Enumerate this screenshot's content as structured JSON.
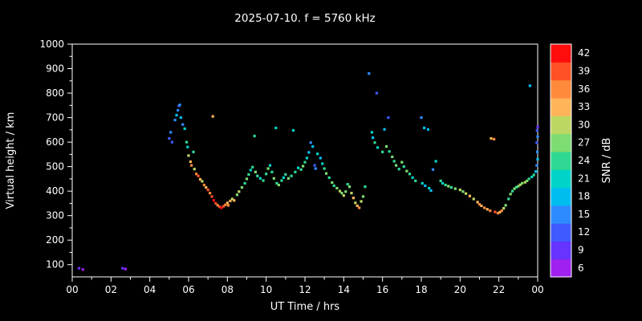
{
  "chart_data": {
    "type": "scatter",
    "title": "2025-07-10. f = 5760 kHz",
    "xlabel": "UT Time / hrs",
    "ylabel": "Virtual height / km",
    "xlim": [
      0,
      24
    ],
    "ylim": [
      50,
      1000
    ],
    "x_tick_values": [
      0,
      2,
      4,
      6,
      8,
      10,
      12,
      14,
      16,
      18,
      20,
      22,
      24
    ],
    "x_tick_labels": [
      "00",
      "02",
      "04",
      "06",
      "08",
      "10",
      "12",
      "14",
      "16",
      "18",
      "20",
      "22",
      "00"
    ],
    "y_tick_values": [
      100,
      200,
      300,
      400,
      500,
      600,
      700,
      800,
      900,
      1000
    ],
    "y_tick_labels": [
      "100",
      "200",
      "300",
      "400",
      "500",
      "600",
      "700",
      "800",
      "900",
      "1000"
    ],
    "background": "#000000",
    "axis_color": "#ffffff",
    "text_color": "#ffffff",
    "grid": false,
    "legend": "colorbar-right",
    "colorbar": {
      "label": "SNR / dB",
      "tick_values": [
        6,
        9,
        12,
        15,
        18,
        21,
        24,
        27,
        30,
        33,
        36,
        39,
        42
      ],
      "colors": [
        "#a020f0",
        "#6633ff",
        "#3e5bff",
        "#2e8bff",
        "#00bdf0",
        "#00d4c8",
        "#2fd993",
        "#7ddc72",
        "#bcd763",
        "#ffb45a",
        "#ff8a3c",
        "#ff5026",
        "#ff0d0d"
      ]
    },
    "points": [
      [
        0.35,
        85,
        9
      ],
      [
        0.55,
        80,
        6
      ],
      [
        2.6,
        85,
        9
      ],
      [
        2.75,
        82,
        6
      ],
      [
        5.0,
        615,
        12
      ],
      [
        5.08,
        640,
        15
      ],
      [
        5.15,
        600,
        12
      ],
      [
        5.3,
        690,
        15
      ],
      [
        5.38,
        710,
        18
      ],
      [
        5.45,
        730,
        15
      ],
      [
        5.5,
        748,
        12
      ],
      [
        5.55,
        752,
        15
      ],
      [
        5.6,
        700,
        18
      ],
      [
        5.7,
        672,
        15
      ],
      [
        5.8,
        655,
        21
      ],
      [
        5.9,
        600,
        24
      ],
      [
        5.95,
        580,
        21
      ],
      [
        6.0,
        545,
        30
      ],
      [
        6.1,
        520,
        33
      ],
      [
        6.15,
        505,
        36
      ],
      [
        6.25,
        560,
        24
      ],
      [
        6.3,
        490,
        30
      ],
      [
        6.4,
        470,
        36
      ],
      [
        6.5,
        462,
        39
      ],
      [
        6.6,
        448,
        33
      ],
      [
        6.7,
        440,
        30
      ],
      [
        6.8,
        425,
        36
      ],
      [
        6.9,
        415,
        33
      ],
      [
        7.0,
        405,
        39
      ],
      [
        7.1,
        392,
        36
      ],
      [
        7.2,
        378,
        39
      ],
      [
        7.25,
        705,
        33
      ],
      [
        7.3,
        362,
        42
      ],
      [
        7.4,
        350,
        39
      ],
      [
        7.5,
        342,
        36
      ],
      [
        7.6,
        336,
        39
      ],
      [
        7.7,
        332,
        42
      ],
      [
        7.8,
        338,
        39
      ],
      [
        7.9,
        344,
        36
      ],
      [
        8.0,
        352,
        33
      ],
      [
        8.05,
        342,
        36
      ],
      [
        8.15,
        360,
        33
      ],
      [
        8.25,
        368,
        30
      ],
      [
        8.35,
        362,
        33
      ],
      [
        8.5,
        385,
        27
      ],
      [
        8.6,
        398,
        30
      ],
      [
        8.75,
        415,
        27
      ],
      [
        8.9,
        432,
        24
      ],
      [
        9.0,
        450,
        27
      ],
      [
        9.1,
        468,
        24
      ],
      [
        9.2,
        486,
        21
      ],
      [
        9.3,
        498,
        24
      ],
      [
        9.4,
        625,
        24
      ],
      [
        9.45,
        478,
        27
      ],
      [
        9.55,
        462,
        24
      ],
      [
        9.7,
        452,
        21
      ],
      [
        9.85,
        443,
        24
      ],
      [
        10.0,
        470,
        24
      ],
      [
        10.1,
        492,
        27
      ],
      [
        10.2,
        505,
        21
      ],
      [
        10.3,
        478,
        24
      ],
      [
        10.4,
        452,
        27
      ],
      [
        10.5,
        658,
        21
      ],
      [
        10.55,
        432,
        24
      ],
      [
        10.65,
        425,
        27
      ],
      [
        10.8,
        443,
        24
      ],
      [
        10.9,
        455,
        21
      ],
      [
        11.0,
        468,
        24
      ],
      [
        11.15,
        452,
        27
      ],
      [
        11.3,
        462,
        24
      ],
      [
        11.4,
        648,
        21
      ],
      [
        11.5,
        478,
        24
      ],
      [
        11.65,
        495,
        21
      ],
      [
        11.8,
        488,
        24
      ],
      [
        11.9,
        502,
        27
      ],
      [
        12.0,
        518,
        24
      ],
      [
        12.1,
        535,
        21
      ],
      [
        12.2,
        558,
        18
      ],
      [
        12.3,
        598,
        15
      ],
      [
        12.4,
        582,
        18
      ],
      [
        12.5,
        505,
        12
      ],
      [
        12.55,
        492,
        15
      ],
      [
        12.65,
        552,
        21
      ],
      [
        12.8,
        535,
        18
      ],
      [
        12.9,
        512,
        21
      ],
      [
        13.0,
        492,
        24
      ],
      [
        13.1,
        472,
        27
      ],
      [
        13.25,
        455,
        24
      ],
      [
        13.4,
        435,
        27
      ],
      [
        13.5,
        422,
        24
      ],
      [
        13.65,
        412,
        27
      ],
      [
        13.8,
        400,
        30
      ],
      [
        13.9,
        392,
        27
      ],
      [
        14.0,
        382,
        30
      ],
      [
        14.1,
        398,
        27
      ],
      [
        14.2,
        428,
        24
      ],
      [
        14.3,
        418,
        27
      ],
      [
        14.4,
        392,
        30
      ],
      [
        14.5,
        372,
        33
      ],
      [
        14.6,
        352,
        30
      ],
      [
        14.7,
        340,
        33
      ],
      [
        14.8,
        332,
        36
      ],
      [
        14.9,
        358,
        30
      ],
      [
        15.0,
        378,
        27
      ],
      [
        15.1,
        418,
        24
      ],
      [
        15.3,
        880,
        15
      ],
      [
        15.45,
        640,
        21
      ],
      [
        15.5,
        618,
        18
      ],
      [
        15.6,
        598,
        24
      ],
      [
        15.7,
        800,
        12
      ],
      [
        15.75,
        578,
        21
      ],
      [
        16.0,
        560,
        24
      ],
      [
        16.1,
        652,
        18
      ],
      [
        16.2,
        582,
        27
      ],
      [
        16.3,
        700,
        12
      ],
      [
        16.35,
        562,
        24
      ],
      [
        16.5,
        540,
        27
      ],
      [
        16.6,
        522,
        24
      ],
      [
        16.7,
        505,
        27
      ],
      [
        16.85,
        490,
        24
      ],
      [
        17.0,
        518,
        27
      ],
      [
        17.1,
        500,
        24
      ],
      [
        17.25,
        482,
        27
      ],
      [
        17.4,
        470,
        24
      ],
      [
        17.55,
        455,
        21
      ],
      [
        17.7,
        442,
        24
      ],
      [
        18.0,
        700,
        15
      ],
      [
        18.05,
        432,
        21
      ],
      [
        18.15,
        658,
        18
      ],
      [
        18.2,
        422,
        18
      ],
      [
        18.35,
        652,
        18
      ],
      [
        18.4,
        412,
        21
      ],
      [
        18.5,
        402,
        18
      ],
      [
        18.6,
        488,
        15
      ],
      [
        18.75,
        522,
        21
      ],
      [
        19.0,
        442,
        24
      ],
      [
        19.1,
        432,
        21
      ],
      [
        19.25,
        425,
        24
      ],
      [
        19.4,
        420,
        27
      ],
      [
        19.55,
        415,
        24
      ],
      [
        19.75,
        410,
        27
      ],
      [
        20.0,
        405,
        30
      ],
      [
        20.15,
        398,
        27
      ],
      [
        20.3,
        390,
        30
      ],
      [
        20.5,
        380,
        33
      ],
      [
        20.7,
        368,
        30
      ],
      [
        20.9,
        355,
        33
      ],
      [
        21.0,
        346,
        36
      ],
      [
        21.1,
        340,
        33
      ],
      [
        21.25,
        332,
        36
      ],
      [
        21.4,
        326,
        33
      ],
      [
        21.55,
        320,
        36
      ],
      [
        21.6,
        615,
        33
      ],
      [
        21.75,
        612,
        36
      ],
      [
        21.8,
        315,
        39
      ],
      [
        21.95,
        310,
        36
      ],
      [
        22.05,
        314,
        33
      ],
      [
        22.15,
        320,
        36
      ],
      [
        22.25,
        330,
        30
      ],
      [
        22.35,
        342,
        27
      ],
      [
        22.5,
        368,
        24
      ],
      [
        22.6,
        388,
        27
      ],
      [
        22.7,
        400,
        24
      ],
      [
        22.8,
        410,
        27
      ],
      [
        22.9,
        416,
        24
      ],
      [
        23.0,
        420,
        27
      ],
      [
        23.1,
        426,
        30
      ],
      [
        23.2,
        432,
        27
      ],
      [
        23.35,
        436,
        30
      ],
      [
        23.45,
        442,
        27
      ],
      [
        23.55,
        450,
        24
      ],
      [
        23.6,
        830,
        18
      ],
      [
        23.7,
        458,
        21
      ],
      [
        23.8,
        466,
        24
      ],
      [
        23.9,
        480,
        18
      ],
      [
        23.95,
        505,
        15
      ],
      [
        23.95,
        598,
        12
      ],
      [
        23.97,
        648,
        12
      ],
      [
        23.98,
        560,
        15
      ],
      [
        24.0,
        530,
        18
      ],
      [
        24.0,
        622,
        15
      ],
      [
        24.0,
        662,
        9
      ]
    ]
  }
}
